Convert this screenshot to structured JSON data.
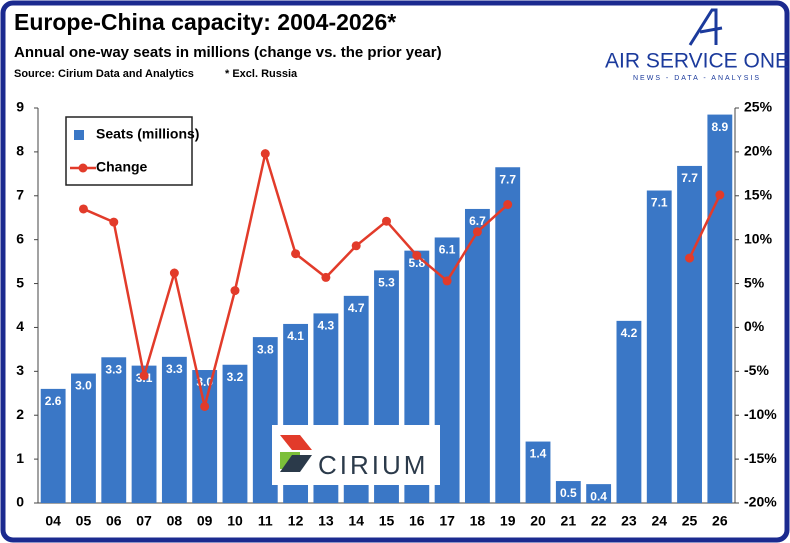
{
  "chart_data": {
    "type": "bar",
    "title": "Europe-China capacity: 2004-2026*",
    "subtitle": "Annual one-way seats in millions (change vs. the prior year)",
    "source": "Source: Cirium Data and Analytics",
    "note": "* Excl. Russia",
    "brand": "AIR SERVICE ONE",
    "brand_tagline": "NEWS - DATA - ANALYSIS",
    "watermark": "CIRIUM",
    "categories": [
      "04",
      "05",
      "06",
      "07",
      "08",
      "09",
      "10",
      "11",
      "12",
      "13",
      "14",
      "15",
      "16",
      "17",
      "18",
      "19",
      "20",
      "21",
      "22",
      "23",
      "24",
      "25",
      "26"
    ],
    "series": [
      {
        "name": "Seats (millions)",
        "type": "bar",
        "color": "#3a77c6",
        "values": [
          2.6,
          2.95,
          3.32,
          3.13,
          3.33,
          3.03,
          3.15,
          3.78,
          4.08,
          4.32,
          4.72,
          5.3,
          5.75,
          6.05,
          6.7,
          7.65,
          1.4,
          0.5,
          0.43,
          4.15,
          7.12,
          7.68,
          8.85
        ],
        "value_labels": [
          "2.6",
          "3.0",
          "3.3",
          "3.1",
          "3.3",
          "3.0",
          "3.2",
          "3.8",
          "4.1",
          "4.3",
          "4.7",
          "5.3",
          "5.8",
          "6.1",
          "6.7",
          "7.7",
          "1.4",
          "0.5",
          "0.4",
          "4.2",
          "7.1",
          "7.7",
          "8.9"
        ]
      },
      {
        "name": "Change",
        "type": "line",
        "axis": "y2",
        "color": "#e23b2a",
        "values": [
          null,
          13.5,
          12,
          -5.5,
          6.2,
          -9,
          4.2,
          19.8,
          8.4,
          5.7,
          9.3,
          12.1,
          8.2,
          5.3,
          10.9,
          14,
          null,
          null,
          null,
          null,
          null,
          7.9,
          15.1
        ]
      }
    ],
    "ylim": [
      0,
      9
    ],
    "yticks": [
      0,
      1,
      2,
      3,
      4,
      5,
      6,
      7,
      8,
      9
    ],
    "y2lim": [
      -20,
      25
    ],
    "y2ticks": [
      {
        "value": -20,
        "label": "-20%"
      },
      {
        "value": -15,
        "label": "-15%"
      },
      {
        "value": -10,
        "label": "-10%"
      },
      {
        "value": -5,
        "label": "-5%"
      },
      {
        "value": 0,
        "label": "0%"
      },
      {
        "value": 5,
        "label": "5%"
      },
      {
        "value": 10,
        "label": "10%"
      },
      {
        "value": 15,
        "label": "15%"
      },
      {
        "value": 20,
        "label": "20%"
      },
      {
        "value": 25,
        "label": "25%"
      }
    ],
    "legend": "top-left"
  }
}
